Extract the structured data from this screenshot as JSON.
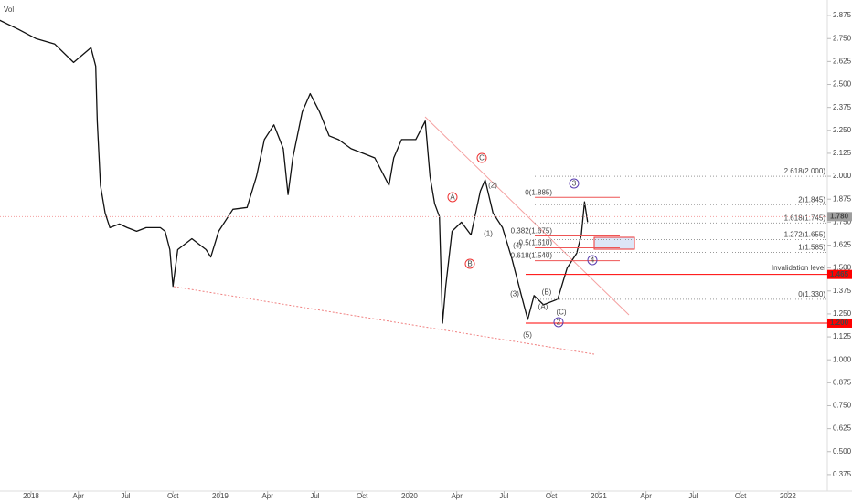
{
  "chart_data": {
    "type": "line",
    "volume_label": "Vol",
    "x": [
      -2.0,
      -0.8,
      0.3,
      1.5,
      2.7,
      3.8,
      4.1,
      4.2,
      4.4,
      4.7,
      5.0,
      5.6,
      6.1,
      6.7,
      7.3,
      8.2,
      8.5,
      8.8,
      9.0,
      9.3,
      10.2,
      11.1,
      11.4,
      11.9,
      12.8,
      13.7,
      14.3,
      14.8,
      15.4,
      16.0,
      16.3,
      16.6,
      17.2,
      17.7,
      18.3,
      18.9,
      19.5,
      20.3,
      21.2,
      21.8,
      22.7,
      23.0,
      23.5,
      24.4,
      25.0,
      25.3,
      25.6,
      25.9,
      26.1,
      26.3,
      26.7,
      27.3,
      27.9,
      28.5,
      28.8,
      29.3,
      29.9,
      30.5,
      31.1,
      31.5,
      31.9,
      32.5,
      33.4,
      34.0,
      34.6,
      34.9,
      35.1,
      35.3
    ],
    "series": [
      {
        "color": "#111111",
        "values": [
          2.85,
          2.8,
          2.75,
          2.72,
          2.62,
          2.7,
          2.6,
          2.3,
          1.95,
          1.8,
          1.72,
          1.74,
          1.72,
          1.7,
          1.72,
          1.72,
          1.7,
          1.6,
          1.4,
          1.6,
          1.66,
          1.6,
          1.56,
          1.7,
          1.82,
          1.83,
          2.0,
          2.2,
          2.28,
          2.15,
          1.9,
          2.1,
          2.35,
          2.45,
          2.35,
          2.22,
          2.2,
          2.15,
          2.12,
          2.1,
          1.95,
          2.1,
          2.2,
          2.2,
          2.3,
          2.0,
          1.85,
          1.78,
          1.2,
          1.4,
          1.7,
          1.75,
          1.68,
          1.92,
          1.98,
          1.8,
          1.72,
          1.55,
          1.35,
          1.22,
          1.35,
          1.3,
          1.33,
          1.5,
          1.58,
          1.68,
          1.86,
          1.75
        ]
      }
    ],
    "xlim": [
      -1.97,
      50.5
    ],
    "xticks": [
      {
        "value": 0,
        "label": "2018"
      },
      {
        "value": 3,
        "label": "Apr"
      },
      {
        "value": 6,
        "label": "Jul"
      },
      {
        "value": 9,
        "label": "Oct"
      },
      {
        "value": 12,
        "label": "2019"
      },
      {
        "value": 15,
        "label": "Apr"
      },
      {
        "value": 18,
        "label": "Jul"
      },
      {
        "value": 21,
        "label": "Oct"
      },
      {
        "value": 24,
        "label": "2020"
      },
      {
        "value": 27,
        "label": "Apr"
      },
      {
        "value": 30,
        "label": "Jul"
      },
      {
        "value": 33,
        "label": "Oct"
      },
      {
        "value": 36,
        "label": "2021"
      },
      {
        "value": 39,
        "label": "Apr"
      },
      {
        "value": 42,
        "label": "Jul"
      },
      {
        "value": 45,
        "label": "Oct"
      },
      {
        "value": 48,
        "label": "2022"
      }
    ],
    "ylim": [
      0.285,
      2.96
    ],
    "yticks": [
      2.875,
      {
        "value": 2.75,
        "label": "2.750"
      },
      2.625,
      {
        "value": 2.5,
        "label": "2.500"
      },
      2.375,
      {
        "value": 2.25,
        "label": "2.250"
      },
      2.125,
      {
        "value": 2,
        "label": "2.000"
      },
      1.875,
      {
        "value": 1.75,
        "label": "1.750"
      },
      1.625,
      {
        "value": 1.5,
        "label": "1.500"
      },
      1.375,
      {
        "value": 1.25,
        "label": "1.250"
      },
      1.125,
      {
        "value": 1,
        "label": "1.000"
      },
      0.875,
      {
        "value": 0.75,
        "label": "0.750"
      },
      0.625,
      {
        "value": 0.5,
        "label": "0.500"
      },
      0.375
    ],
    "fib_right": [
      {
        "value": 2.0,
        "label": "2.618(2.000)"
      },
      {
        "value": 1.845,
        "label": "2(1.845)"
      },
      {
        "value": 1.745,
        "label": "1.618(1.745)"
      },
      {
        "value": 1.655,
        "label": "1.272(1.655)"
      },
      {
        "value": 1.585,
        "label": "1(1.585)"
      },
      {
        "value": 1.33,
        "label": "0(1.330)"
      }
    ],
    "fib_left": [
      {
        "value": 1.885,
        "label": "0(1.885)"
      },
      {
        "value": 1.675,
        "label": "0.382(1.675)"
      },
      {
        "value": 1.61,
        "label": "0.5(1.610)"
      },
      {
        "value": 1.54,
        "label": "0.618(1.540)"
      }
    ],
    "price_tags": [
      {
        "value": 1.78,
        "label": "1.780",
        "color": "#9e9e9e"
      },
      {
        "value": 1.465,
        "label": "1.465",
        "color": "#ff0000"
      },
      {
        "value": 1.2,
        "label": "1.200",
        "color": "#ff0000"
      }
    ],
    "annotation": "Invalidation level",
    "wave_labels": [
      "A",
      "B",
      "C",
      "3",
      "2",
      "4",
      "(1)",
      "(2)",
      "(3)",
      "(4)",
      "(5)",
      "(A)",
      "(B)",
      "(C)"
    ]
  }
}
